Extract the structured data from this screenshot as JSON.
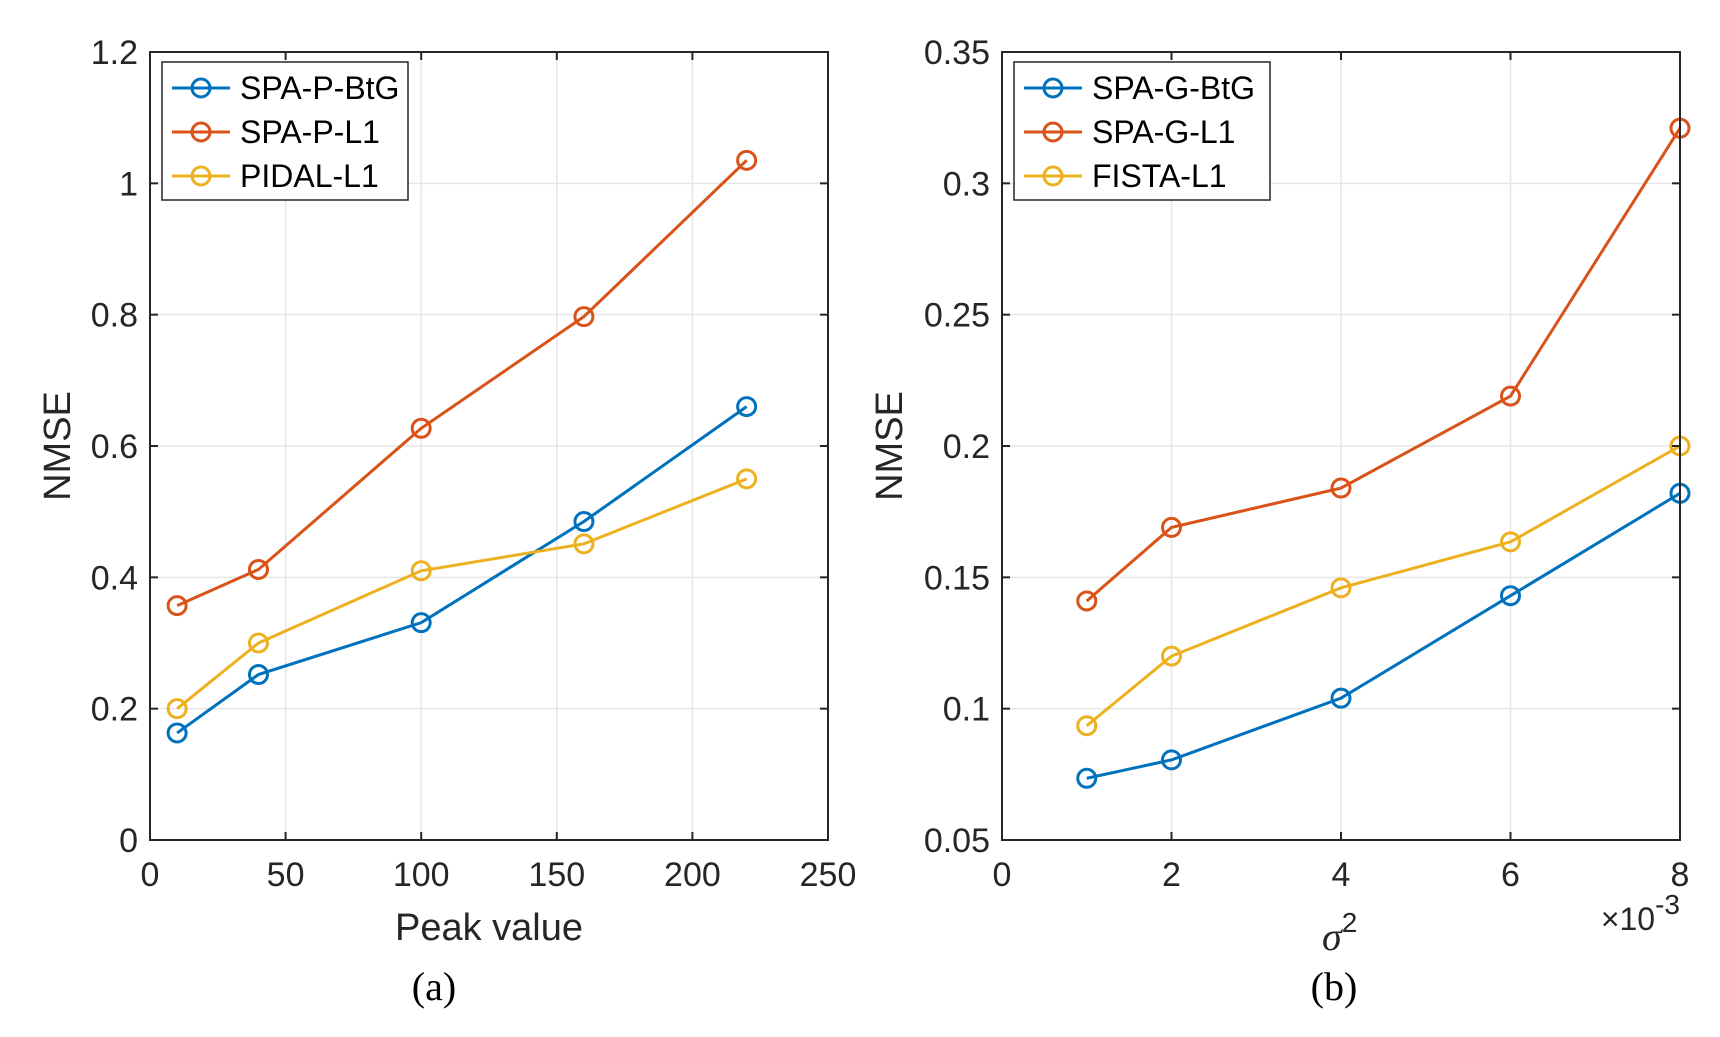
{
  "chart_data": [
    {
      "type": "line",
      "panel_label": "(a)",
      "title": "",
      "xlabel": "Peak value",
      "ylabel": "NMSE",
      "xlim": [
        0,
        250
      ],
      "ylim": [
        0,
        1.2
      ],
      "xticks": [
        0,
        50,
        100,
        150,
        200,
        250
      ],
      "xtick_labels": [
        "0",
        "50",
        "100",
        "150",
        "200",
        "250"
      ],
      "yticks": [
        0,
        0.2,
        0.4,
        0.6,
        0.8,
        1,
        1.2
      ],
      "ytick_labels": [
        "0",
        "0.2",
        "0.4",
        "0.6",
        "0.8",
        "1",
        "1.2"
      ],
      "grid": true,
      "legend_position": "top-left",
      "x": [
        10,
        40,
        100,
        160,
        220
      ],
      "series": [
        {
          "name": "SPA-P-BtG",
          "color": "#0072BD",
          "values": [
            0.163,
            0.252,
            0.331,
            0.485,
            0.66
          ]
        },
        {
          "name": "SPA-P-L1",
          "color": "#D95319",
          "values": [
            0.357,
            0.412,
            0.627,
            0.797,
            1.035
          ]
        },
        {
          "name": "PIDAL-L1",
          "color": "#EDB120",
          "values": [
            0.2,
            0.3,
            0.41,
            0.451,
            0.55
          ]
        }
      ]
    },
    {
      "type": "line",
      "panel_label": "(b)",
      "title": "",
      "xlabel_symbol": "σ",
      "xlabel_superscript": "2",
      "x_exponent_prefix": "×10",
      "x_exponent_power": "-3",
      "ylabel": "NMSE",
      "xlim": [
        0,
        8
      ],
      "ylim": [
        0.05,
        0.35
      ],
      "xticks": [
        0,
        2,
        4,
        6,
        8
      ],
      "xtick_labels": [
        "0",
        "2",
        "4",
        "6",
        "8"
      ],
      "yticks": [
        0.05,
        0.1,
        0.15,
        0.2,
        0.25,
        0.3,
        0.35
      ],
      "ytick_labels": [
        "0.05",
        "0.1",
        "0.15",
        "0.2",
        "0.25",
        "0.3",
        "0.35"
      ],
      "grid": true,
      "legend_position": "top-left",
      "x": [
        1,
        2,
        4,
        6,
        8
      ],
      "series": [
        {
          "name": "SPA-G-BtG",
          "color": "#0072BD",
          "values": [
            0.0735,
            0.0805,
            0.104,
            0.143,
            0.182
          ]
        },
        {
          "name": "SPA-G-L1",
          "color": "#D95319",
          "values": [
            0.141,
            0.169,
            0.184,
            0.219,
            0.321
          ]
        },
        {
          "name": "FISTA-L1",
          "color": "#EDB120",
          "values": [
            0.0935,
            0.12,
            0.146,
            0.1635,
            0.2
          ]
        }
      ]
    }
  ]
}
